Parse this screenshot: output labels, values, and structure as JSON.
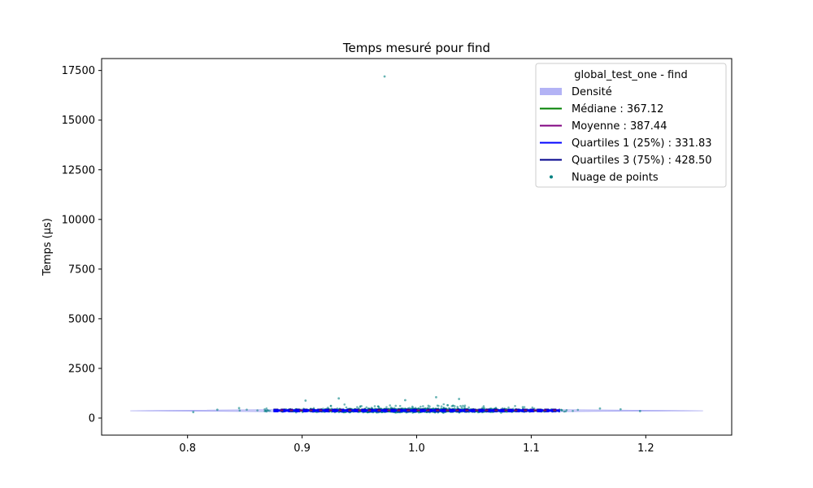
{
  "chart_data": {
    "type": "scatter",
    "title": "Temps mesuré pour find",
    "xlabel": "",
    "ylabel": "Temps (µs)",
    "xlim": [
      0.725,
      1.275
    ],
    "ylim": [
      -860,
      18100
    ],
    "xticks": [
      0.8,
      0.9,
      1.0,
      1.1,
      1.2
    ],
    "xtick_labels": [
      "0.8",
      "0.9",
      "1.0",
      "1.1",
      "1.2"
    ],
    "yticks": [
      0,
      2500,
      5000,
      7500,
      10000,
      12500,
      15000,
      17500
    ],
    "ytick_labels": [
      "0",
      "2500",
      "5000",
      "7500",
      "10000",
      "12500",
      "15000",
      "17500"
    ],
    "grid": false,
    "legend_placement": "top-right",
    "legend": {
      "title": "global_test_one - find",
      "entries": [
        {
          "label": "Densité",
          "kind": "patch",
          "color": "#b3b3f5"
        },
        {
          "label": "Médiane : 367.12",
          "kind": "line",
          "color": "#008000"
        },
        {
          "label": "Moyenne : 387.44",
          "kind": "line",
          "color": "#800080"
        },
        {
          "label": "Quartiles 1 (25%) : 331.83",
          "kind": "line",
          "color": "#0000ff"
        },
        {
          "label": "Quartiles 3 (75%) : 428.50",
          "kind": "line",
          "color": "#00008b"
        },
        {
          "label": "Nuage de points",
          "kind": "point",
          "color": "#008080"
        }
      ]
    },
    "statistics": {
      "median": 367.12,
      "mean": 387.44,
      "q1": 331.83,
      "q3": 428.5
    },
    "density": {
      "x_range": [
        0.75,
        1.25
      ],
      "color": "#b3b3f5"
    },
    "quartile_lines": {
      "x_range": [
        0.875,
        1.125
      ]
    },
    "scatter": {
      "color": "#008080",
      "outliers": [
        {
          "x": 0.972,
          "y": 17200
        },
        {
          "x": 1.017,
          "y": 1050
        },
        {
          "x": 0.932,
          "y": 990
        },
        {
          "x": 1.037,
          "y": 960
        },
        {
          "x": 0.903,
          "y": 880
        },
        {
          "x": 0.99,
          "y": 900
        },
        {
          "x": 0.805,
          "y": 300
        },
        {
          "x": 0.826,
          "y": 420
        },
        {
          "x": 1.195,
          "y": 350
        },
        {
          "x": 1.178,
          "y": 440
        },
        {
          "x": 1.16,
          "y": 480
        },
        {
          "x": 0.845,
          "y": 500
        }
      ]
    }
  }
}
